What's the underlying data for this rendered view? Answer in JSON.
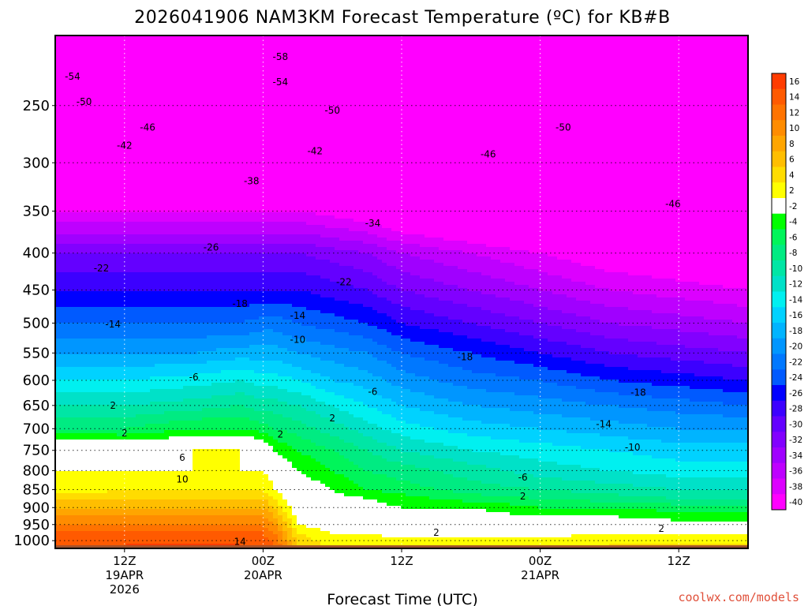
{
  "chart_data": {
    "type": "heatmap",
    "title": "2026041906 NAM3KM Forecast Temperature (ºC) for KB#B",
    "xlabel": "Forecast Time (UTC)",
    "ylabel": "",
    "credit": "coolwx.com/models",
    "y_scale": "log-pressure, inverted (hPa)",
    "y_range": [
      1025,
      200
    ],
    "y_ticks": [
      "250",
      "300",
      "350",
      "400",
      "450",
      "500",
      "550",
      "600",
      "650",
      "700",
      "750",
      "800",
      "850",
      "900",
      "950",
      "1000"
    ],
    "x_range_hours": [
      0,
      60
    ],
    "x_ticks": [
      {
        "hour": 6,
        "line1": "12Z",
        "line2": "19APR",
        "line3": "2026"
      },
      {
        "hour": 18,
        "line1": "00Z",
        "line2": "20APR",
        "line3": ""
      },
      {
        "hour": 30,
        "line1": "12Z",
        "line2": "",
        "line3": ""
      },
      {
        "hour": 42,
        "line1": "00Z",
        "line2": "21APR",
        "line3": ""
      },
      {
        "hour": 54,
        "line1": "12Z",
        "line2": "",
        "line3": ""
      }
    ],
    "grid": true,
    "colorbar": {
      "levels": [
        16,
        14,
        12,
        10,
        8,
        6,
        4,
        2,
        -2,
        -4,
        -6,
        -8,
        -10,
        -12,
        -14,
        -16,
        -18,
        -20,
        -22,
        -24,
        -26,
        -28,
        -30,
        -32,
        -34,
        -36,
        -38,
        -40
      ],
      "colors": [
        "#ff3c00",
        "#ff5a00",
        "#ff7300",
        "#ff8c00",
        "#ffa500",
        "#ffbe00",
        "#ffdc00",
        "#ffff00",
        "#ffffff",
        "#00ff00",
        "#00f55a",
        "#00eb82",
        "#00e6a5",
        "#00e1c8",
        "#00f0f0",
        "#00d2ff",
        "#00b4ff",
        "#0096ff",
        "#0078ff",
        "#005aff",
        "#0000ff",
        "#3c00ff",
        "#6400ff",
        "#8200ff",
        "#a000ff",
        "#be00ff",
        "#dc00ff",
        "#ff00ff"
      ]
    },
    "profiles": [
      {
        "hour": 0,
        "temps": [
          14,
          14,
          12,
          10,
          8,
          6,
          2,
          2,
          2,
          -6,
          -10,
          -14,
          -18,
          -22,
          -26,
          -30,
          -34,
          -38,
          -42,
          -46,
          -50,
          -54
        ]
      },
      {
        "hour": 6,
        "temps": [
          16,
          15,
          12,
          10,
          8,
          6,
          4,
          2,
          1,
          -6,
          -10,
          -14,
          -18,
          -22,
          -26,
          -30,
          -34,
          -38,
          -42,
          -46,
          -50,
          -54
        ]
      },
      {
        "hour": 12,
        "temps": [
          16,
          15,
          12,
          10,
          8,
          6,
          4,
          2,
          2,
          -4,
          -9,
          -13,
          -18,
          -22,
          -26,
          -30,
          -34,
          -38,
          -42,
          -46,
          -50,
          -55
        ]
      },
      {
        "hour": 16,
        "temps": [
          16,
          15,
          12,
          10,
          8,
          6,
          4,
          2,
          2,
          -4,
          -8,
          -12,
          -17,
          -22,
          -26,
          -30,
          -34,
          -38,
          -42,
          -46,
          -50,
          -55
        ]
      },
      {
        "hour": 18,
        "temps": [
          15,
          14,
          12,
          10,
          8,
          6,
          4,
          2,
          1,
          -5,
          -9,
          -13,
          -17,
          -21,
          -26,
          -30,
          -34,
          -38,
          -42,
          -46,
          -50,
          -56
        ]
      },
      {
        "hour": 19,
        "temps": [
          14,
          12,
          10,
          8,
          6,
          4,
          2,
          1,
          -2,
          -6,
          -9,
          -13,
          -17,
          -21,
          -26,
          -30,
          -34,
          -38,
          -42,
          -46,
          -51,
          -57
        ]
      },
      {
        "hour": 21,
        "temps": [
          6,
          4,
          2,
          1,
          0,
          -1,
          0,
          -2,
          -4,
          -7,
          -10,
          -14,
          -18,
          -22,
          -26,
          -30,
          -34,
          -38,
          -42,
          -46,
          -51,
          -57
        ]
      },
      {
        "hour": 24,
        "temps": [
          3,
          2,
          0,
          0,
          -1,
          -1,
          -2,
          -4,
          -6,
          -9,
          -12,
          -16,
          -19,
          -23,
          -27,
          -31,
          -35,
          -39,
          -43,
          -47,
          -52,
          -56
        ]
      },
      {
        "hour": 27,
        "temps": [
          3,
          2,
          0,
          -1,
          -1,
          -2,
          -4,
          -6,
          -8,
          -11,
          -14,
          -17,
          -20,
          -24,
          -28,
          -32,
          -36,
          -40,
          -44,
          -48,
          -52,
          -56
        ]
      },
      {
        "hour": 30,
        "temps": [
          3,
          1,
          0,
          -1,
          -2,
          -3,
          -5,
          -7,
          -10,
          -13,
          -16,
          -19,
          -22,
          -26,
          -30,
          -34,
          -38,
          -42,
          -46,
          -49,
          -52,
          -56
        ]
      },
      {
        "hour": 36,
        "temps": [
          3,
          1,
          0,
          -1,
          -2,
          -5,
          -7,
          -9,
          -12,
          -15,
          -18,
          -21,
          -24,
          -28,
          -32,
          -36,
          -40,
          -44,
          -47,
          -50,
          -52,
          -56
        ]
      },
      {
        "hour": 42,
        "temps": [
          3,
          1,
          0,
          -2,
          -4,
          -6,
          -8,
          -11,
          -13,
          -16,
          -19,
          -22,
          -26,
          -30,
          -34,
          -38,
          -42,
          -46,
          -48,
          -50,
          -52,
          -55
        ]
      },
      {
        "hour": 48,
        "temps": [
          4,
          2,
          0,
          -2,
          -4,
          -7,
          -9,
          -12,
          -14,
          -17,
          -20,
          -24,
          -28,
          -32,
          -36,
          -40,
          -44,
          -47,
          -49,
          -50,
          -52,
          -54
        ]
      },
      {
        "hour": 54,
        "temps": [
          4,
          2,
          -1,
          -3,
          -5,
          -8,
          -10,
          -13,
          -15,
          -18,
          -21,
          -25,
          -29,
          -33,
          -37,
          -41,
          -45,
          -47,
          -48,
          -49,
          -51,
          -53
        ]
      },
      {
        "hour": 60,
        "temps": [
          4,
          2,
          -1,
          -3,
          -5,
          -8,
          -10,
          -13,
          -15,
          -18,
          -22,
          -26,
          -30,
          -34,
          -38,
          -42,
          -45,
          -47,
          -48,
          -49,
          -51,
          -53
        ]
      }
    ],
    "profile_levels_hPa": [
      1010,
      975,
      950,
      925,
      900,
      875,
      850,
      800,
      750,
      700,
      650,
      600,
      550,
      500,
      450,
      400,
      375,
      350,
      325,
      300,
      250,
      200
    ],
    "contour_labels": [
      {
        "hour": 1.5,
        "p": 228,
        "text": "-54"
      },
      {
        "hour": 19.5,
        "p": 214,
        "text": "-58"
      },
      {
        "hour": 19.5,
        "p": 232,
        "text": "-54"
      },
      {
        "hour": 2.5,
        "p": 247,
        "text": "-50"
      },
      {
        "hour": 24,
        "p": 254,
        "text": "-50"
      },
      {
        "hour": 44,
        "p": 268,
        "text": "-50"
      },
      {
        "hour": 8,
        "p": 268,
        "text": "-46"
      },
      {
        "hour": 37.5,
        "p": 292,
        "text": "-46"
      },
      {
        "hour": 53.5,
        "p": 342,
        "text": "-46"
      },
      {
        "hour": 6,
        "p": 284,
        "text": "-42"
      },
      {
        "hour": 22.5,
        "p": 289,
        "text": "-42"
      },
      {
        "hour": 17,
        "p": 318,
        "text": "-38"
      },
      {
        "hour": 27.5,
        "p": 364,
        "text": "-34"
      },
      {
        "hour": 13.5,
        "p": 393,
        "text": "-26"
      },
      {
        "hour": 4,
        "p": 420,
        "text": "-22"
      },
      {
        "hour": 25,
        "p": 439,
        "text": "-22"
      },
      {
        "hour": 16,
        "p": 470,
        "text": "-18"
      },
      {
        "hour": 35.5,
        "p": 557,
        "text": "-18"
      },
      {
        "hour": 50.5,
        "p": 624,
        "text": "-18"
      },
      {
        "hour": 5,
        "p": 502,
        "text": "-14"
      },
      {
        "hour": 21,
        "p": 488,
        "text": "-14"
      },
      {
        "hour": 47.5,
        "p": 690,
        "text": "-14"
      },
      {
        "hour": 21,
        "p": 527,
        "text": "-10"
      },
      {
        "hour": 50,
        "p": 743,
        "text": "-10"
      },
      {
        "hour": 12,
        "p": 594,
        "text": "-6"
      },
      {
        "hour": 27.5,
        "p": 622,
        "text": "-6"
      },
      {
        "hour": 40.5,
        "p": 817,
        "text": "-6"
      },
      {
        "hour": 5,
        "p": 650,
        "text": "2"
      },
      {
        "hour": 24,
        "p": 677,
        "text": "2"
      },
      {
        "hour": 6,
        "p": 710,
        "text": "2"
      },
      {
        "hour": 19.5,
        "p": 713,
        "text": "2"
      },
      {
        "hour": 40.5,
        "p": 868,
        "text": "2"
      },
      {
        "hour": 52.5,
        "p": 962,
        "text": "2"
      },
      {
        "hour": 33,
        "p": 975,
        "text": "2"
      },
      {
        "hour": 11,
        "p": 768,
        "text": "6"
      },
      {
        "hour": 11,
        "p": 823,
        "text": "10"
      },
      {
        "hour": 16,
        "p": 1003,
        "text": "14"
      }
    ]
  }
}
